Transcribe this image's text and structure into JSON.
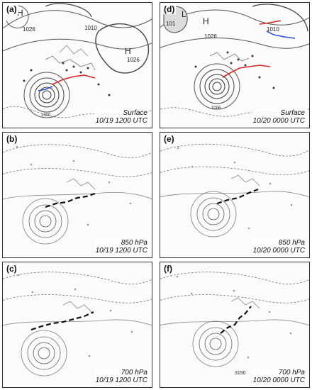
{
  "figure": {
    "panels": [
      {
        "id": "a",
        "letter": "(a)",
        "level": "Surface",
        "time": "10/19 1200 UTC",
        "kind": "surface",
        "pressure_labels": [
          "H",
          "1026",
          "1010",
          "H",
          "1026",
          "1000"
        ]
      },
      {
        "id": "b",
        "letter": "(b)",
        "level": "850 hPa",
        "time": "10/19 1200 UTC",
        "kind": "upper"
      },
      {
        "id": "c",
        "letter": "(c)",
        "level": "700 hPa",
        "time": "10/19 1200 UTC",
        "kind": "upper"
      },
      {
        "id": "d",
        "letter": "(d)",
        "level": "Surface",
        "time": "10/20 0000 UTC",
        "kind": "surface",
        "pressure_labels": [
          "H",
          "1026",
          "1010",
          "L",
          "101",
          "1006"
        ]
      },
      {
        "id": "e",
        "letter": "(e)",
        "level": "850 hPa",
        "time": "10/20 0000 UTC",
        "kind": "upper"
      },
      {
        "id": "f",
        "letter": "(f)",
        "level": "700 hPa",
        "time": "10/20 0000 UTC",
        "kind": "upper",
        "contour_label": "3150"
      }
    ],
    "colors": {
      "contour": "#555555",
      "dashed": "#777777",
      "front_warm": "#d62828",
      "front_cold": "#2b4fd6",
      "trough_line": "#111111"
    }
  }
}
